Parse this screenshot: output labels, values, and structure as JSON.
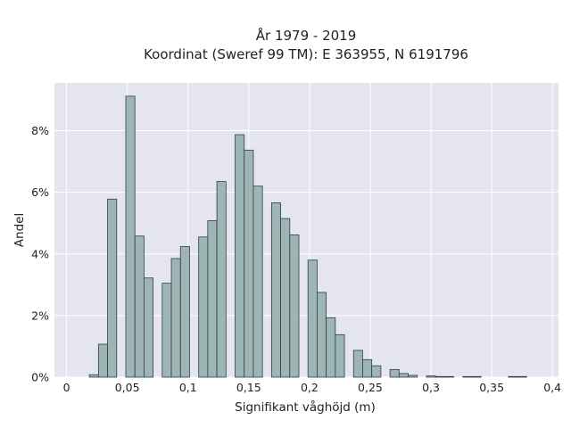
{
  "chart_data": {
    "type": "bar",
    "title_lines": [
      "År 1979 - 2019",
      "Koordinat (Sweref 99 TM): E 363955, N 6191796"
    ],
    "xlabel": "Signifikant våghöjd (m)",
    "ylabel": "Andel",
    "xlim": [
      -0.01,
      0.405
    ],
    "ylim": [
      0,
      0.0955
    ],
    "bin_width": 0.0075,
    "x_ticks": [
      {
        "value": 0,
        "label": "0"
      },
      {
        "value": 0.05,
        "label": "0,05"
      },
      {
        "value": 0.1,
        "label": "0,1"
      },
      {
        "value": 0.15,
        "label": "0,15"
      },
      {
        "value": 0.2,
        "label": "0,2"
      },
      {
        "value": 0.25,
        "label": "0,25"
      },
      {
        "value": 0.3,
        "label": "0,3"
      },
      {
        "value": 0.35,
        "label": "0,35"
      },
      {
        "value": 0.4,
        "label": "0,4"
      }
    ],
    "y_ticks": [
      {
        "value": 0,
        "label": "0%"
      },
      {
        "value": 0.02,
        "label": "2%"
      },
      {
        "value": 0.04,
        "label": "4%"
      },
      {
        "value": 0.06,
        "label": "6%"
      },
      {
        "value": 0.08,
        "label": "8%"
      }
    ],
    "bins": [
      {
        "x": 0.0225,
        "y": 0.0008
      },
      {
        "x": 0.03,
        "y": 0.0107
      },
      {
        "x": 0.0375,
        "y": 0.0578
      },
      {
        "x": 0.0525,
        "y": 0.0912
      },
      {
        "x": 0.06,
        "y": 0.0458
      },
      {
        "x": 0.0675,
        "y": 0.0322
      },
      {
        "x": 0.0825,
        "y": 0.0305
      },
      {
        "x": 0.09,
        "y": 0.0385
      },
      {
        "x": 0.0975,
        "y": 0.0424
      },
      {
        "x": 0.1125,
        "y": 0.0455
      },
      {
        "x": 0.12,
        "y": 0.0508
      },
      {
        "x": 0.1275,
        "y": 0.0635
      },
      {
        "x": 0.1425,
        "y": 0.0787
      },
      {
        "x": 0.15,
        "y": 0.0737
      },
      {
        "x": 0.1575,
        "y": 0.062
      },
      {
        "x": 0.1725,
        "y": 0.0566
      },
      {
        "x": 0.18,
        "y": 0.0515
      },
      {
        "x": 0.1875,
        "y": 0.0462
      },
      {
        "x": 0.2025,
        "y": 0.038
      },
      {
        "x": 0.21,
        "y": 0.0275
      },
      {
        "x": 0.2175,
        "y": 0.0193
      },
      {
        "x": 0.225,
        "y": 0.0138
      },
      {
        "x": 0.24,
        "y": 0.0087
      },
      {
        "x": 0.2475,
        "y": 0.0057
      },
      {
        "x": 0.255,
        "y": 0.0037
      },
      {
        "x": 0.27,
        "y": 0.0025
      },
      {
        "x": 0.2775,
        "y": 0.0012
      },
      {
        "x": 0.285,
        "y": 0.0006
      },
      {
        "x": 0.3,
        "y": 0.0004
      },
      {
        "x": 0.3075,
        "y": 0.0002
      },
      {
        "x": 0.315,
        "y": 0.0002
      },
      {
        "x": 0.33,
        "y": 0.0002
      },
      {
        "x": 0.3375,
        "y": 0.0002
      },
      {
        "x": 0.3675,
        "y": 0.0002
      },
      {
        "x": 0.375,
        "y": 0.0002
      }
    ],
    "grid": true,
    "legend": "none",
    "colors": {
      "bar_fill": "#9db5b5",
      "bar_stroke": "#2f3f3f",
      "plot_background": "#e5e5ef",
      "grid": "#ffffff"
    }
  }
}
